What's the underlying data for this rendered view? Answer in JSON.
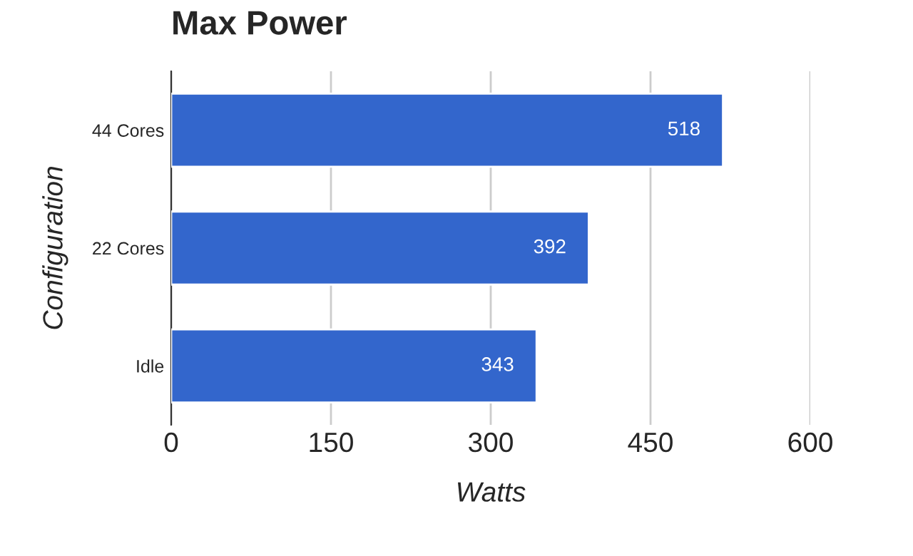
{
  "chart_data": {
    "type": "bar",
    "orientation": "horizontal",
    "title": "Max Power",
    "xlabel": "Watts",
    "ylabel": "Configuration",
    "categories": [
      "44 Cores",
      "22 Cores",
      "Idle"
    ],
    "values": [
      518,
      392,
      343
    ],
    "color": "#3366cc",
    "xlim": [
      0,
      600
    ],
    "xticks": [
      0,
      150,
      300,
      450,
      600
    ],
    "grid": "x",
    "data_labels": true
  }
}
